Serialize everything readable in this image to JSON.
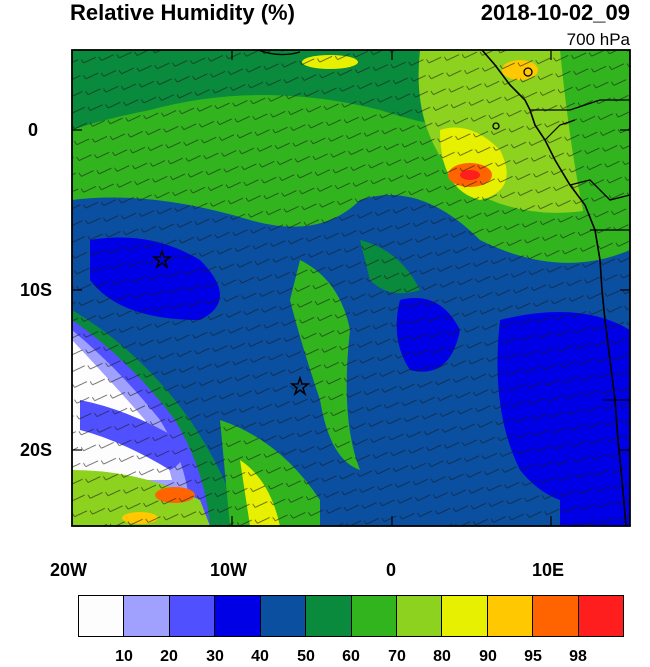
{
  "header": {
    "title": "Relative Humidity (%)",
    "datetime": "2018-10-02_09",
    "level": "700 hPa"
  },
  "axes": {
    "y_ticks": [
      "0",
      "10S",
      "20S"
    ],
    "x_ticks": [
      "20W",
      "10W",
      "0",
      "10E"
    ]
  },
  "colorbar": {
    "labels": [
      "10",
      "20",
      "30",
      "40",
      "50",
      "60",
      "70",
      "80",
      "90",
      "95",
      "98"
    ],
    "colors": [
      "#fdfdfd",
      "#a0a0ff",
      "#5050ff",
      "#0000e6",
      "#0a4fa0",
      "#0a8a3c",
      "#32b41e",
      "#8cd21e",
      "#e6f000",
      "#ffc800",
      "#ff6400",
      "#ff1e1e"
    ]
  },
  "markers": [
    {
      "label": "star",
      "lon": -14.3,
      "lat": -8.0
    },
    {
      "label": "star",
      "lon": -5.8,
      "lat": -16.0
    }
  ]
}
